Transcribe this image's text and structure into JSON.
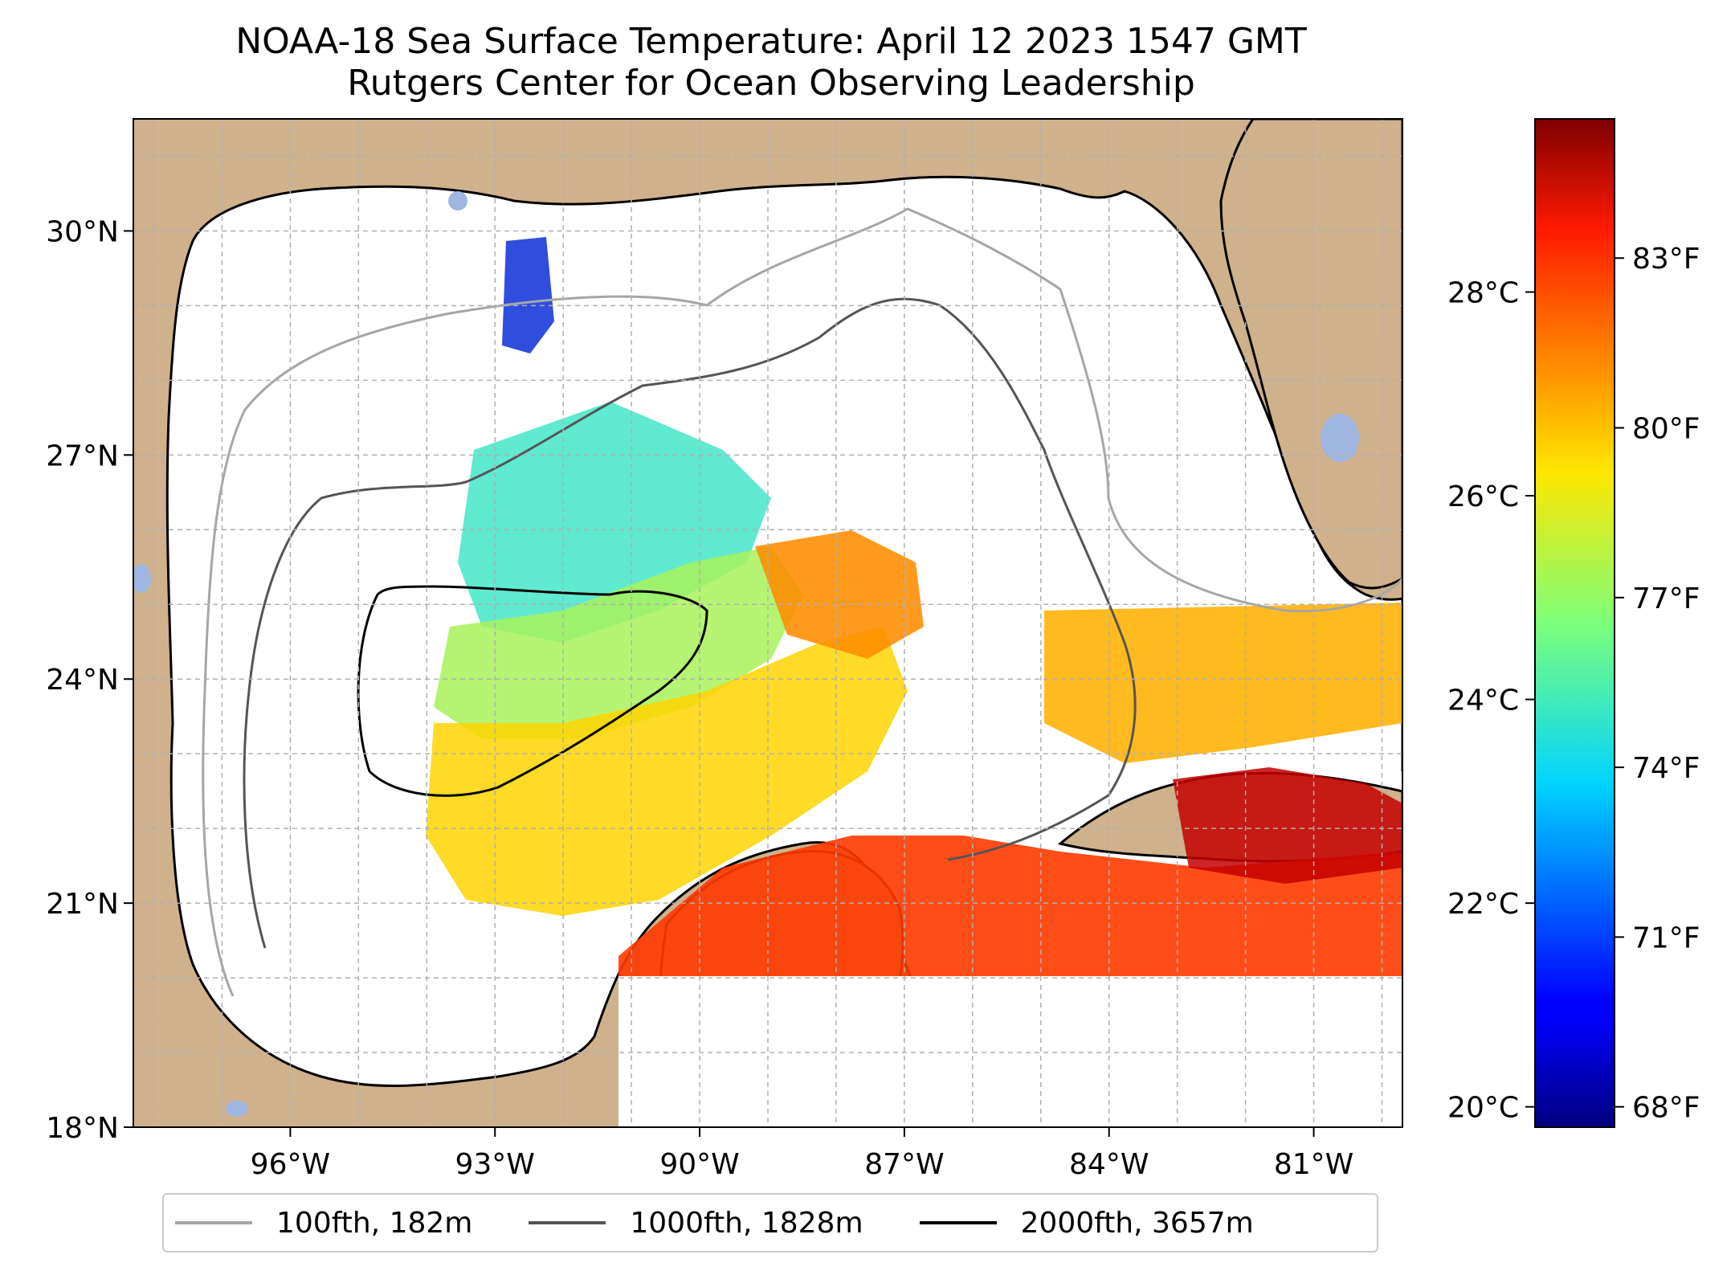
{
  "title": {
    "line1": "NOAA-18 Sea Surface Temperature: April 12 2023 1547 GMT",
    "line2": "Rutgers Center for Ocean Observing Leadership"
  },
  "map": {
    "extent": {
      "lon_min": -98.3,
      "lon_max": -79.7,
      "lat_min": 18,
      "lat_max": 31.5
    },
    "lon_ticks": [
      {
        "value": -96,
        "label": "96°W"
      },
      {
        "value": -93,
        "label": "93°W"
      },
      {
        "value": -90,
        "label": "90°W"
      },
      {
        "value": -87,
        "label": "87°W"
      },
      {
        "value": -84,
        "label": "84°W"
      },
      {
        "value": -81,
        "label": "81°W"
      }
    ],
    "lat_ticks": [
      {
        "value": 18,
        "label": "18°N"
      },
      {
        "value": 21,
        "label": "21°N"
      },
      {
        "value": 24,
        "label": "24°N"
      },
      {
        "value": 27,
        "label": "27°N"
      },
      {
        "value": 30,
        "label": "30°N"
      }
    ],
    "grid": true,
    "colors": {
      "land": "#cfb18c",
      "ocean_no_data": "#ffffff",
      "lakes": "#9fb6e0",
      "coastline": "#000000",
      "grid": "#b0b0b0"
    }
  },
  "colorbar": {
    "colormap": "jet",
    "celsius_range": [
      19.8,
      29.7
    ],
    "celsius_ticks": [
      {
        "value": 20,
        "label": "20°C"
      },
      {
        "value": 22,
        "label": "22°C"
      },
      {
        "value": 24,
        "label": "24°C"
      },
      {
        "value": 26,
        "label": "26°C"
      },
      {
        "value": 28,
        "label": "28°C"
      }
    ],
    "fahrenheit_ticks": [
      {
        "value": 68,
        "label": "68°F"
      },
      {
        "value": 71,
        "label": "71°F"
      },
      {
        "value": 74,
        "label": "74°F"
      },
      {
        "value": 77,
        "label": "77°F"
      },
      {
        "value": 80,
        "label": "80°F"
      },
      {
        "value": 83,
        "label": "83°F"
      }
    ]
  },
  "legend": {
    "placement": "bottom",
    "entries": [
      {
        "label": "100fth, 182m",
        "color": "#a6a6a6"
      },
      {
        "label": "1000fth, 1828m",
        "color": "#555555"
      },
      {
        "label": "2000fth, 3657m",
        "color": "#000000"
      }
    ]
  }
}
